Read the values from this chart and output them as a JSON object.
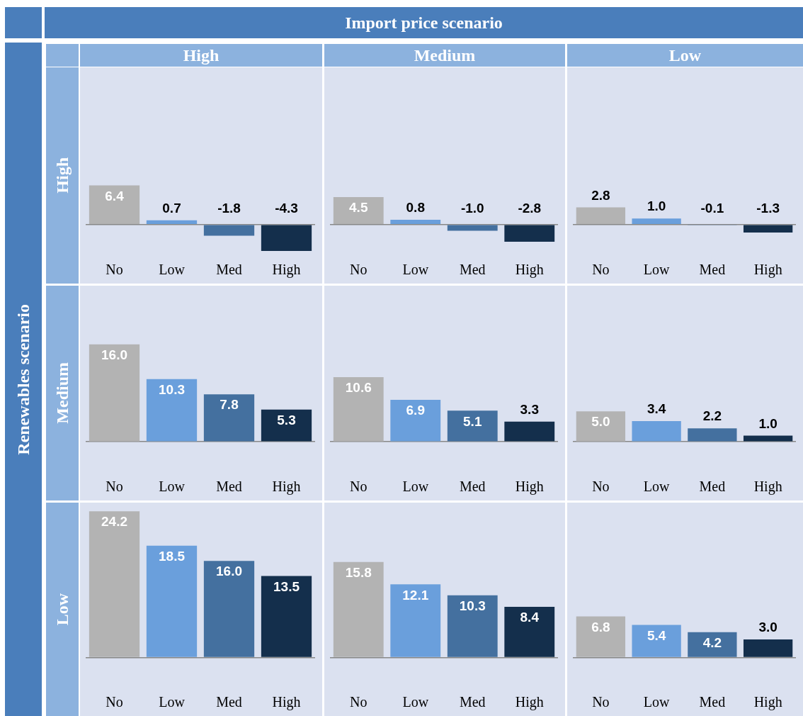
{
  "chart_data": [
    {
      "type": "other",
      "title": "Import price scenario",
      "ylabel": "Renewables scenario"
    },
    {
      "type": "bar",
      "title": "High",
      "ylabel": "High",
      "categories": [
        "No",
        "Low",
        "Med",
        "High"
      ],
      "values": [
        6.4,
        0.7,
        -1.8,
        -4.3
      ],
      "value_labels": [
        "6.4",
        "0.7",
        "-1.8",
        "-4.3"
      ],
      "colors": [
        "#b3b3b3",
        "#6a9fdc",
        "#44709f",
        "#142f4c"
      ]
    },
    {
      "type": "bar",
      "title": "Medium",
      "categories": [
        "No",
        "Low",
        "Med",
        "High"
      ],
      "values": [
        4.5,
        0.8,
        -1.0,
        -2.8
      ],
      "value_labels": [
        "4.5",
        "0.8",
        "-1.0",
        "-2.8"
      ],
      "colors": [
        "#b3b3b3",
        "#6a9fdc",
        "#44709f",
        "#142f4c"
      ]
    },
    {
      "type": "bar",
      "title": "Low",
      "categories": [
        "No",
        "Low",
        "Med",
        "High"
      ],
      "values": [
        2.8,
        1.0,
        -0.1,
        -1.3
      ],
      "value_labels": [
        "2.8",
        "1.0",
        "-0.1",
        "-1.3"
      ],
      "colors": [
        "#b3b3b3",
        "#6a9fdc",
        "#44709f",
        "#142f4c"
      ]
    },
    {
      "type": "bar",
      "ylabel": "Medium",
      "categories": [
        "No",
        "Low",
        "Med",
        "High"
      ],
      "values": [
        16.0,
        10.3,
        7.8,
        5.3
      ],
      "value_labels": [
        "16.0",
        "10.3",
        "7.8",
        "5.3"
      ],
      "colors": [
        "#b3b3b3",
        "#6a9fdc",
        "#44709f",
        "#142f4c"
      ]
    },
    {
      "type": "bar",
      "categories": [
        "No",
        "Low",
        "Med",
        "High"
      ],
      "values": [
        10.6,
        6.9,
        5.1,
        3.3
      ],
      "value_labels": [
        "10.6",
        "6.9",
        "5.1",
        "3.3"
      ],
      "colors": [
        "#b3b3b3",
        "#6a9fdc",
        "#44709f",
        "#142f4c"
      ]
    },
    {
      "type": "bar",
      "categories": [
        "No",
        "Low",
        "Med",
        "High"
      ],
      "values": [
        5.0,
        3.4,
        2.2,
        1.0
      ],
      "value_labels": [
        "5.0",
        "3.4",
        "2.2",
        "1.0"
      ],
      "colors": [
        "#b3b3b3",
        "#6a9fdc",
        "#44709f",
        "#142f4c"
      ]
    },
    {
      "type": "bar",
      "ylabel": "Low",
      "categories": [
        "No",
        "Low",
        "Med",
        "High"
      ],
      "values": [
        24.2,
        18.5,
        16.0,
        13.5
      ],
      "value_labels": [
        "24.2",
        "18.5",
        "16.0",
        "13.5"
      ],
      "colors": [
        "#b3b3b3",
        "#6a9fdc",
        "#44709f",
        "#142f4c"
      ]
    },
    {
      "type": "bar",
      "categories": [
        "No",
        "Low",
        "Med",
        "High"
      ],
      "values": [
        15.8,
        12.1,
        10.3,
        8.4
      ],
      "value_labels": [
        "15.8",
        "12.1",
        "10.3",
        "8.4"
      ],
      "colors": [
        "#b3b3b3",
        "#6a9fdc",
        "#44709f",
        "#142f4c"
      ]
    },
    {
      "type": "bar",
      "categories": [
        "No",
        "Low",
        "Med",
        "High"
      ],
      "values": [
        6.8,
        5.4,
        4.2,
        3.0
      ],
      "value_labels": [
        "6.8",
        "5.4",
        "4.2",
        "3.0"
      ],
      "colors": [
        "#b3b3b3",
        "#6a9fdc",
        "#44709f",
        "#142f4c"
      ]
    }
  ]
}
